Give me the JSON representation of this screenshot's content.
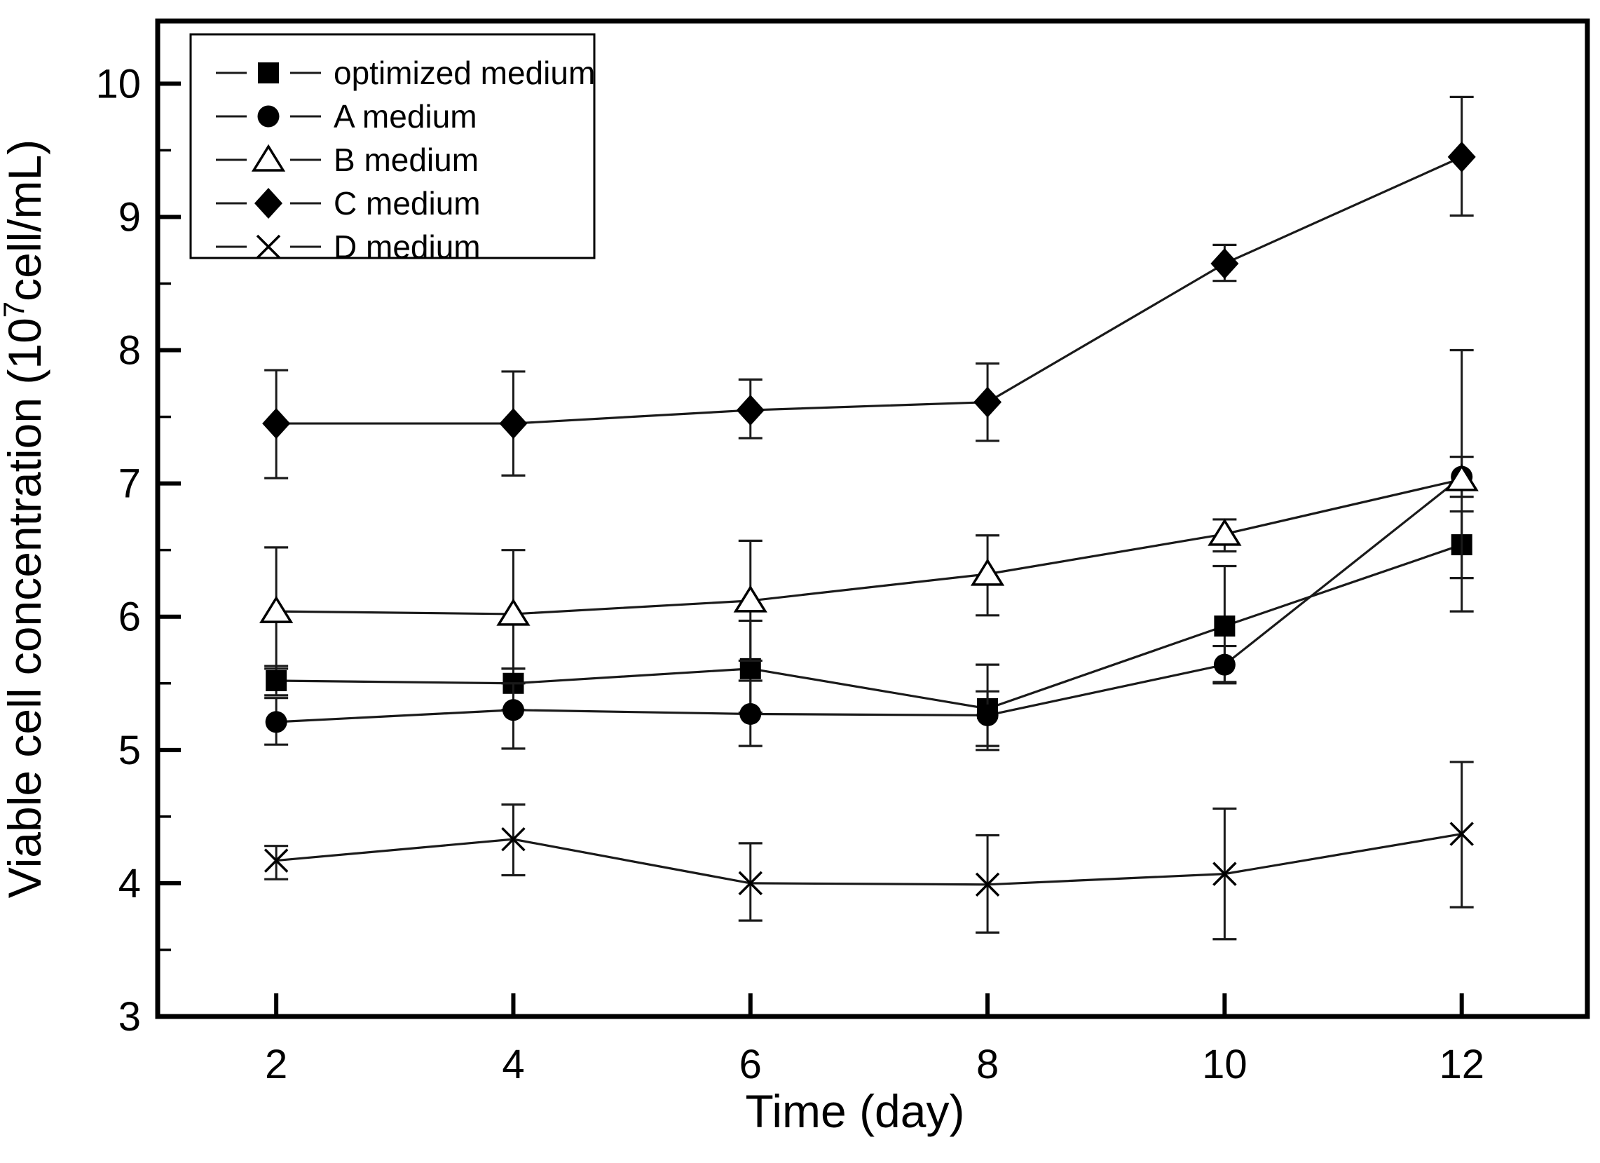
{
  "figure": {
    "background_color": "#ffffff",
    "axis_color": "#000000",
    "line_color": "#1a1a1a"
  },
  "chart_data": {
    "type": "line",
    "title": "",
    "xlabel": "Time (day)",
    "ylabel": "Viable cell concentration (10⁷cell/mL)",
    "ylabel_parts": {
      "pre": "Viable cell concentration (10",
      "sup": "7",
      "post": "cell/mL)"
    },
    "x": [
      2,
      4,
      6,
      8,
      10,
      12
    ],
    "xlim": [
      1.0,
      13.06
    ],
    "ylim": [
      3,
      10.47
    ],
    "x_ticks": [
      2,
      4,
      6,
      8,
      10,
      12
    ],
    "y_major_ticks": [
      3,
      4,
      5,
      6,
      7,
      8,
      9,
      10
    ],
    "y_minor_ticks": [
      3.5,
      4.5,
      5.5,
      6.5,
      7.5,
      8.5,
      9.5
    ],
    "grid": "off",
    "legend_position": "top-left",
    "series": [
      {
        "name": "optimized medium",
        "marker": "filled-square",
        "values": [
          5.52,
          5.5,
          5.61,
          5.31,
          5.93,
          6.54
        ],
        "err_up": [
          0.11,
          0.11,
          0.36,
          0.33,
          0.45,
          0.25
        ],
        "err_down": [
          0.11,
          0.2,
          0.33,
          0.31,
          0.42,
          0.25
        ]
      },
      {
        "name": "A medium",
        "marker": "filled-circle",
        "values": [
          5.21,
          5.3,
          5.27,
          5.26,
          5.64,
          7.05
        ],
        "err_up": [
          0.18,
          0.2,
          0.25,
          0.18,
          0.14,
          0.15
        ],
        "err_down": [
          0.17,
          0.29,
          0.24,
          0.23,
          0.14,
          0.15
        ]
      },
      {
        "name": "B medium",
        "marker": "open-triangle",
        "values": [
          6.04,
          6.02,
          6.12,
          6.32,
          6.62,
          7.03
        ],
        "err_up": [
          0.48,
          0.48,
          0.45,
          0.29,
          0.11,
          0.97
        ],
        "err_down": [
          0.43,
          0.41,
          0.45,
          0.31,
          0.13,
          0.99
        ]
      },
      {
        "name": "C medium",
        "marker": "filled-diamond",
        "values": [
          7.45,
          7.45,
          7.55,
          7.61,
          8.65,
          9.45
        ],
        "err_up": [
          0.4,
          0.39,
          0.23,
          0.29,
          0.14,
          0.45
        ],
        "err_down": [
          0.41,
          0.39,
          0.21,
          0.29,
          0.13,
          0.44
        ]
      },
      {
        "name": "D medium",
        "marker": "x-cross",
        "values": [
          4.17,
          4.33,
          4.0,
          3.99,
          4.07,
          4.37
        ],
        "err_up": [
          0.11,
          0.26,
          0.3,
          0.37,
          0.49,
          0.54
        ],
        "err_down": [
          0.14,
          0.27,
          0.28,
          0.36,
          0.49,
          0.55
        ]
      }
    ]
  }
}
